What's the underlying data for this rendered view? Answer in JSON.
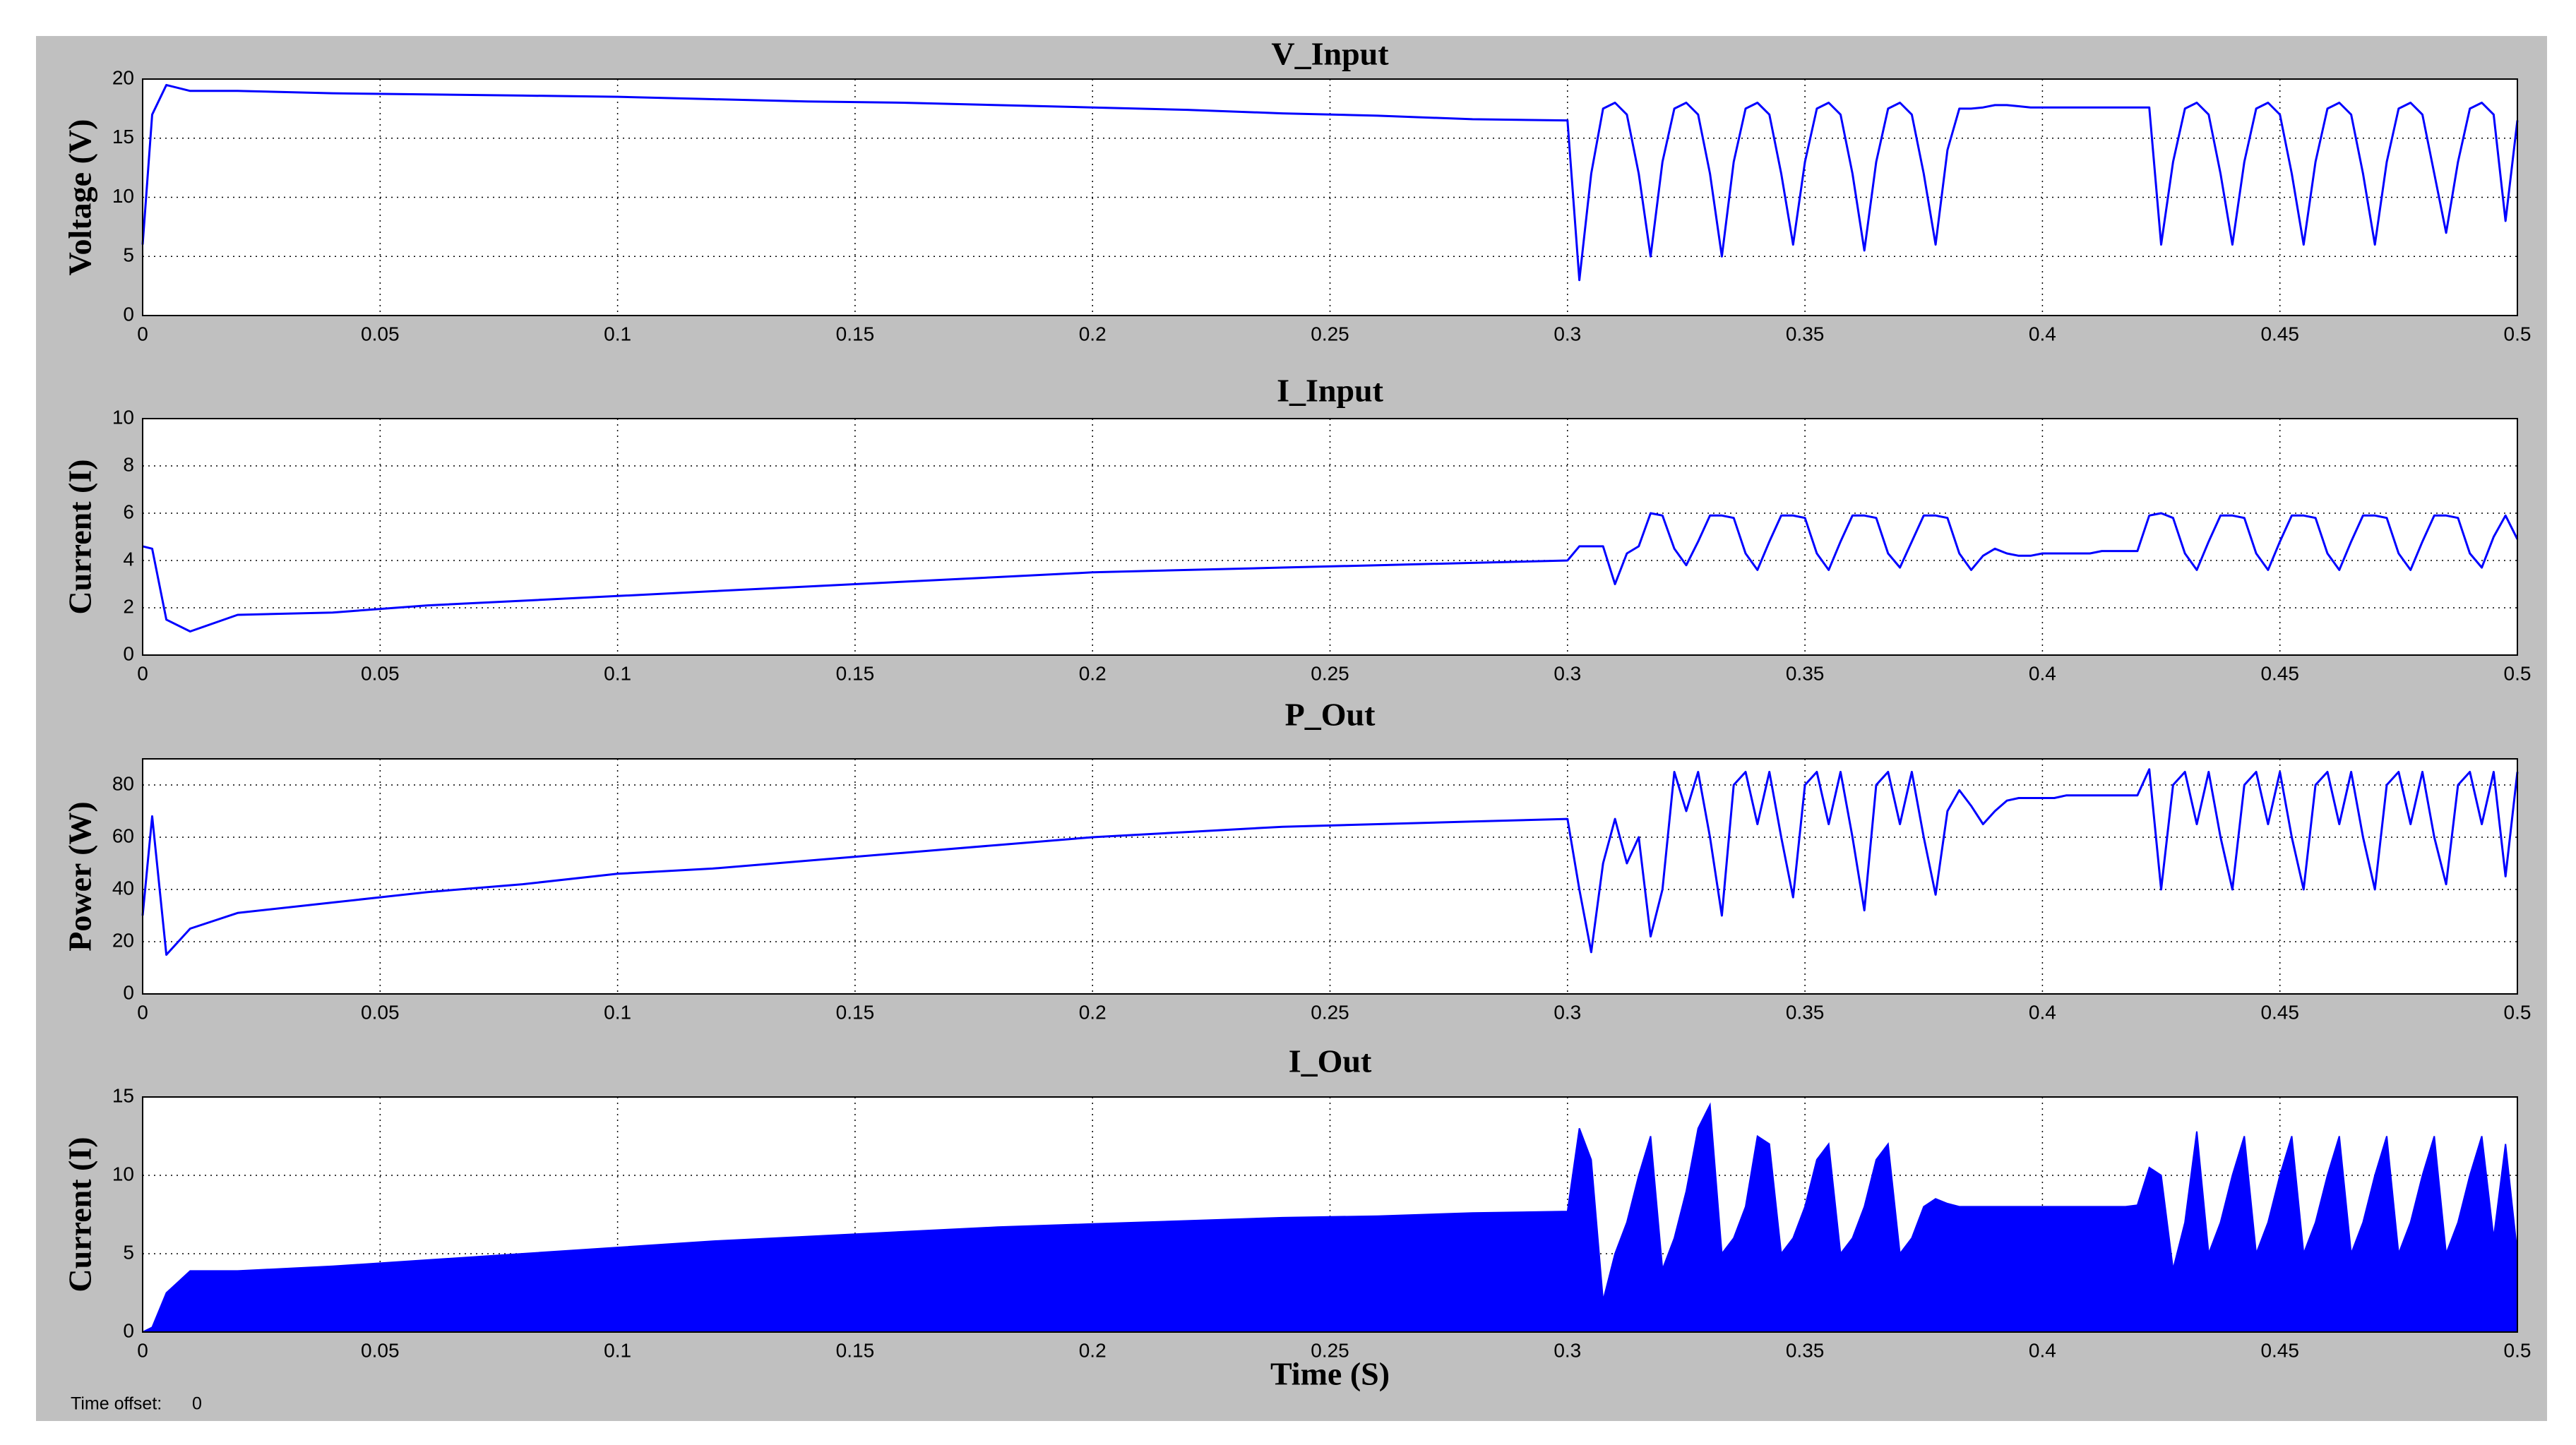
{
  "chart_data": [
    {
      "type": "line",
      "title": "V_Input",
      "ylabel": "Voltage (V)",
      "color": "#0000ff",
      "grid": true,
      "xlim": [
        0,
        0.5
      ],
      "xticks": [
        0,
        0.05,
        0.1,
        0.15,
        0.2,
        0.25,
        0.3,
        0.35,
        0.4,
        0.45,
        0.5
      ],
      "ylim": [
        0,
        20
      ],
      "yticks": [
        0,
        5,
        10,
        15,
        20
      ],
      "x": [
        0,
        0.002,
        0.005,
        0.01,
        0.02,
        0.04,
        0.06,
        0.08,
        0.1,
        0.12,
        0.14,
        0.16,
        0.18,
        0.2,
        0.22,
        0.24,
        0.26,
        0.28,
        0.3,
        0.3025,
        0.305,
        0.3075,
        0.31,
        0.3125,
        0.315,
        0.3175,
        0.32,
        0.3225,
        0.325,
        0.3275,
        0.33,
        0.3325,
        0.335,
        0.3375,
        0.34,
        0.3425,
        0.345,
        0.3475,
        0.35,
        0.3525,
        0.355,
        0.3575,
        0.36,
        0.3625,
        0.365,
        0.3675,
        0.37,
        0.3725,
        0.375,
        0.3775,
        0.38,
        0.3825,
        0.385,
        0.3875,
        0.39,
        0.3925,
        0.395,
        0.3975,
        0.4,
        0.4025,
        0.405,
        0.4075,
        0.41,
        0.4125,
        0.415,
        0.4175,
        0.42,
        0.4225,
        0.425,
        0.4275,
        0.43,
        0.4325,
        0.435,
        0.4375,
        0.44,
        0.4425,
        0.445,
        0.4475,
        0.45,
        0.4525,
        0.455,
        0.4575,
        0.46,
        0.4625,
        0.465,
        0.4675,
        0.47,
        0.4725,
        0.475,
        0.4775,
        0.48,
        0.4825,
        0.485,
        0.4875,
        0.49,
        0.4925,
        0.495,
        0.4975,
        0.5
      ],
      "values": [
        6,
        17,
        19.5,
        19,
        19,
        18.8,
        18.7,
        18.6,
        18.5,
        18.3,
        18.1,
        18,
        17.8,
        17.6,
        17.4,
        17.1,
        16.9,
        16.6,
        16.5,
        3,
        12,
        17.5,
        18,
        17,
        12,
        5,
        13,
        17.5,
        18,
        17,
        12,
        5,
        13,
        17.5,
        18,
        17,
        12,
        6,
        13,
        17.5,
        18,
        17,
        12,
        5.5,
        13,
        17.5,
        18,
        17,
        12,
        6,
        14,
        17.5,
        17.5,
        17.6,
        17.8,
        17.8,
        17.7,
        17.6,
        17.6,
        17.6,
        17.6,
        17.6,
        17.6,
        17.6,
        17.6,
        17.6,
        17.6,
        17.6,
        6,
        13,
        17.5,
        18,
        17,
        12,
        6,
        13,
        17.5,
        18,
        17,
        12,
        6,
        13,
        17.5,
        18,
        17,
        12,
        6,
        13,
        17.5,
        18,
        17,
        12,
        7,
        13,
        17.5,
        18,
        17,
        8,
        16.5
      ]
    },
    {
      "type": "line",
      "title": "I_Input",
      "ylabel": "Current (I)",
      "color": "#0000ff",
      "grid": true,
      "xlim": [
        0,
        0.5
      ],
      "xticks": [
        0,
        0.05,
        0.1,
        0.15,
        0.2,
        0.25,
        0.3,
        0.35,
        0.4,
        0.45,
        0.5
      ],
      "ylim": [
        0,
        10
      ],
      "yticks": [
        0,
        2,
        4,
        6,
        8,
        10
      ],
      "x": [
        0,
        0.002,
        0.005,
        0.01,
        0.02,
        0.04,
        0.06,
        0.08,
        0.1,
        0.12,
        0.14,
        0.16,
        0.18,
        0.2,
        0.22,
        0.24,
        0.26,
        0.28,
        0.3,
        0.3025,
        0.305,
        0.3075,
        0.31,
        0.3125,
        0.315,
        0.3175,
        0.32,
        0.3225,
        0.325,
        0.3275,
        0.33,
        0.3325,
        0.335,
        0.3375,
        0.34,
        0.3425,
        0.345,
        0.3475,
        0.35,
        0.3525,
        0.355,
        0.3575,
        0.36,
        0.3625,
        0.365,
        0.3675,
        0.37,
        0.3725,
        0.375,
        0.3775,
        0.38,
        0.3825,
        0.385,
        0.3875,
        0.39,
        0.3925,
        0.395,
        0.3975,
        0.4,
        0.4025,
        0.405,
        0.4075,
        0.41,
        0.4125,
        0.415,
        0.4175,
        0.42,
        0.4225,
        0.425,
        0.4275,
        0.43,
        0.4325,
        0.435,
        0.4375,
        0.44,
        0.4425,
        0.445,
        0.4475,
        0.45,
        0.4525,
        0.455,
        0.4575,
        0.46,
        0.4625,
        0.465,
        0.4675,
        0.47,
        0.4725,
        0.475,
        0.4775,
        0.48,
        0.4825,
        0.485,
        0.4875,
        0.49,
        0.4925,
        0.495,
        0.4975,
        0.5
      ],
      "values": [
        4.6,
        4.5,
        1.5,
        1,
        1.7,
        1.8,
        2.1,
        2.3,
        2.5,
        2.7,
        2.9,
        3.1,
        3.3,
        3.5,
        3.6,
        3.7,
        3.8,
        3.9,
        4,
        4.6,
        4.6,
        4.6,
        3,
        4.3,
        4.6,
        6,
        5.9,
        4.5,
        3.8,
        4.8,
        5.9,
        5.9,
        5.8,
        4.3,
        3.6,
        4.8,
        5.9,
        5.9,
        5.8,
        4.3,
        3.6,
        4.8,
        5.9,
        5.9,
        5.8,
        4.3,
        3.7,
        4.8,
        5.9,
        5.9,
        5.8,
        4.3,
        3.6,
        4.2,
        4.5,
        4.3,
        4.2,
        4.2,
        4.3,
        4.3,
        4.3,
        4.3,
        4.3,
        4.4,
        4.4,
        4.4,
        4.4,
        5.9,
        6,
        5.8,
        4.3,
        3.6,
        4.8,
        5.9,
        5.9,
        5.8,
        4.3,
        3.6,
        4.8,
        5.9,
        5.9,
        5.8,
        4.3,
        3.6,
        4.8,
        5.9,
        5.9,
        5.8,
        4.3,
        3.6,
        4.8,
        5.9,
        5.9,
        5.8,
        4.3,
        3.7,
        5,
        5.9,
        4.9
      ]
    },
    {
      "type": "line",
      "title": "P_Out",
      "ylabel": "Power (W)",
      "color": "#0000ff",
      "grid": true,
      "xlim": [
        0,
        0.5
      ],
      "xticks": [
        0,
        0.05,
        0.1,
        0.15,
        0.2,
        0.25,
        0.3,
        0.35,
        0.4,
        0.45,
        0.5
      ],
      "ylim": [
        0,
        90
      ],
      "yticks": [
        0,
        20,
        40,
        60,
        80
      ],
      "x": [
        0,
        0.002,
        0.005,
        0.01,
        0.02,
        0.04,
        0.06,
        0.08,
        0.1,
        0.12,
        0.14,
        0.16,
        0.18,
        0.2,
        0.22,
        0.24,
        0.26,
        0.28,
        0.3,
        0.3025,
        0.305,
        0.3075,
        0.31,
        0.3125,
        0.315,
        0.3175,
        0.32,
        0.3225,
        0.325,
        0.3275,
        0.33,
        0.3325,
        0.335,
        0.3375,
        0.34,
        0.3425,
        0.345,
        0.3475,
        0.35,
        0.3525,
        0.355,
        0.3575,
        0.36,
        0.3625,
        0.365,
        0.3675,
        0.37,
        0.3725,
        0.375,
        0.3775,
        0.38,
        0.3825,
        0.385,
        0.3875,
        0.39,
        0.3925,
        0.395,
        0.3975,
        0.4,
        0.4025,
        0.405,
        0.4075,
        0.41,
        0.4125,
        0.415,
        0.4175,
        0.42,
        0.4225,
        0.425,
        0.4275,
        0.43,
        0.4325,
        0.435,
        0.4375,
        0.44,
        0.4425,
        0.445,
        0.4475,
        0.45,
        0.4525,
        0.455,
        0.4575,
        0.46,
        0.4625,
        0.465,
        0.4675,
        0.47,
        0.4725,
        0.475,
        0.4775,
        0.48,
        0.4825,
        0.485,
        0.4875,
        0.49,
        0.4925,
        0.495,
        0.4975,
        0.5
      ],
      "values": [
        30,
        68,
        15,
        25,
        31,
        35,
        39,
        42,
        46,
        48,
        51,
        54,
        57,
        60,
        62,
        64,
        65,
        66,
        67,
        40,
        16,
        50,
        67,
        50,
        60,
        22,
        40,
        85,
        70,
        85,
        60,
        30,
        80,
        85,
        65,
        85,
        60,
        37,
        80,
        85,
        65,
        85,
        60,
        32,
        80,
        85,
        65,
        85,
        60,
        38,
        70,
        78,
        72,
        65,
        70,
        74,
        75,
        75,
        75,
        75,
        76,
        76,
        76,
        76,
        76,
        76,
        76,
        86,
        40,
        80,
        85,
        65,
        85,
        60,
        40,
        80,
        85,
        65,
        85,
        60,
        40,
        80,
        85,
        65,
        85,
        60,
        40,
        80,
        85,
        65,
        85,
        60,
        42,
        80,
        85,
        65,
        85,
        45,
        85
      ]
    },
    {
      "type": "area",
      "title": "I_Out",
      "ylabel": "Current (I)",
      "xlabel": "Time (S)",
      "color": "#0000ff",
      "grid": true,
      "xlim": [
        0,
        0.5
      ],
      "xticks": [
        0,
        0.05,
        0.1,
        0.15,
        0.2,
        0.25,
        0.3,
        0.35,
        0.4,
        0.45,
        0.5
      ],
      "ylim": [
        0,
        15
      ],
      "yticks": [
        0,
        5,
        10,
        15
      ],
      "x": [
        0,
        0.002,
        0.005,
        0.01,
        0.02,
        0.04,
        0.06,
        0.08,
        0.1,
        0.12,
        0.14,
        0.16,
        0.18,
        0.2,
        0.22,
        0.24,
        0.26,
        0.28,
        0.3,
        0.3025,
        0.305,
        0.3075,
        0.31,
        0.3125,
        0.315,
        0.3175,
        0.32,
        0.3225,
        0.325,
        0.3275,
        0.33,
        0.3325,
        0.335,
        0.3375,
        0.34,
        0.3425,
        0.345,
        0.3475,
        0.35,
        0.3525,
        0.355,
        0.3575,
        0.36,
        0.3625,
        0.365,
        0.3675,
        0.37,
        0.3725,
        0.375,
        0.3775,
        0.38,
        0.3825,
        0.385,
        0.3875,
        0.39,
        0.3925,
        0.395,
        0.3975,
        0.4,
        0.4025,
        0.405,
        0.4075,
        0.41,
        0.4125,
        0.415,
        0.4175,
        0.42,
        0.4225,
        0.425,
        0.4275,
        0.43,
        0.4325,
        0.435,
        0.4375,
        0.44,
        0.4425,
        0.445,
        0.4475,
        0.45,
        0.4525,
        0.455,
        0.4575,
        0.46,
        0.4625,
        0.465,
        0.4675,
        0.47,
        0.4725,
        0.475,
        0.4775,
        0.48,
        0.4825,
        0.485,
        0.4875,
        0.49,
        0.4925,
        0.495,
        0.4975,
        0.5
      ],
      "values": [
        0,
        0.3,
        2.5,
        3.9,
        3.9,
        4.2,
        4.6,
        5,
        5.4,
        5.8,
        6.1,
        6.4,
        6.7,
        6.9,
        7.1,
        7.3,
        7.4,
        7.6,
        7.7,
        13,
        11,
        2,
        5,
        7,
        10,
        12.5,
        4,
        6,
        9,
        13,
        14.5,
        5,
        6,
        8,
        12.5,
        12,
        5,
        6,
        8,
        11,
        12,
        5,
        6,
        8,
        11,
        12,
        5,
        6,
        8,
        8.5,
        8.2,
        8,
        8,
        8,
        8,
        8,
        8,
        8,
        8,
        8,
        8,
        8,
        8,
        8,
        8,
        8,
        8.1,
        10.5,
        10,
        4,
        7,
        12.8,
        5,
        7,
        10,
        12.5,
        5,
        7,
        10,
        12.5,
        5,
        7,
        10,
        12.5,
        5,
        7,
        10,
        12.5,
        5,
        7,
        10,
        12.5,
        5,
        7,
        10,
        12.5,
        6,
        12,
        5
      ]
    }
  ],
  "footer_label": "Time offset:",
  "footer_value": "0"
}
